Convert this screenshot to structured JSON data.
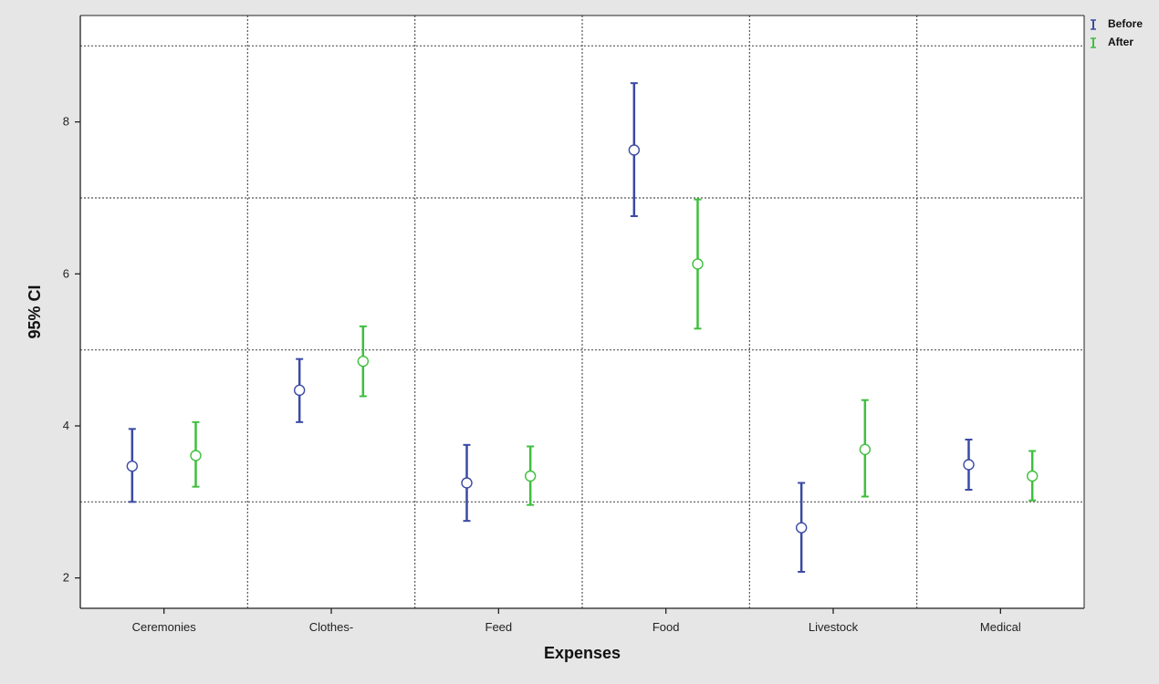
{
  "chart_data": {
    "type": "errorbar",
    "xlabel": "Expenses",
    "ylabel": "95% CI",
    "categories": [
      "Ceremonies",
      "Clothes-",
      "Feed",
      "Food",
      "Livestock",
      "Medical"
    ],
    "yticks": [
      2,
      4,
      6,
      8
    ],
    "ylim": [
      1.6,
      9.4
    ],
    "grid": true,
    "legend_position": "top-right",
    "series": [
      {
        "name": "Before",
        "color": "#3b4aa3",
        "mean": [
          3.47,
          4.47,
          3.25,
          7.63,
          2.66,
          3.49
        ],
        "lower": [
          3.0,
          4.05,
          2.75,
          6.76,
          2.08,
          3.16
        ],
        "upper": [
          3.96,
          4.88,
          3.75,
          8.51,
          3.25,
          3.82
        ]
      },
      {
        "name": "After",
        "color": "#3fbf3f",
        "mean": [
          3.61,
          4.85,
          3.34,
          6.13,
          3.69,
          3.34
        ],
        "lower": [
          3.2,
          4.39,
          2.96,
          5.28,
          3.07,
          3.02
        ],
        "upper": [
          4.05,
          5.31,
          3.73,
          6.98,
          4.34,
          3.67
        ]
      }
    ]
  }
}
